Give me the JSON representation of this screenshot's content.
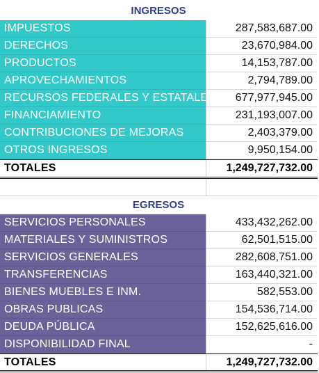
{
  "ingresos": {
    "title": "INGRESOS",
    "rows": [
      {
        "label": "IMPUESTOS",
        "value": "287,583,687.00"
      },
      {
        "label": "DERECHOS",
        "value": "23,670,984.00"
      },
      {
        "label": "PRODUCTOS",
        "value": "14,153,787.00"
      },
      {
        "label": "APROVECHAMIENTOS",
        "value": "2,794,789.00"
      },
      {
        "label": "RECURSOS FEDERALES Y ESTATALES",
        "value": "677,977,945.00"
      },
      {
        "label": "FINANCIAMIENTO",
        "value": "231,193,007.00"
      },
      {
        "label": "CONTRIBUCIONES DE MEJORAS",
        "value": "2,403,379.00"
      },
      {
        "label": "OTROS INGRESOS",
        "value": "9,950,154.00"
      }
    ],
    "total_label": "TOTALES",
    "total_value": "1,249,727,732.00"
  },
  "egresos": {
    "title": "EGRESOS",
    "rows": [
      {
        "label": "SERVICIOS PERSONALES",
        "value": "433,432,262.00"
      },
      {
        "label": "MATERIALES Y SUMINISTROS",
        "value": "62,501,515.00"
      },
      {
        "label": "SERVICIOS GENERALES",
        "value": "282,608,751.00"
      },
      {
        "label": "TRANSFERENCIAS",
        "value": "163,440,321.00"
      },
      {
        "label": "BIENES MUEBLES E INM.",
        "value": "582,553.00"
      },
      {
        "label": "OBRAS PUBLICAS",
        "value": "154,536,714.00"
      },
      {
        "label": "DEUDA PÚBLICA",
        "value": "152,625,616.00"
      },
      {
        "label": "DISPONIBILIDAD FINAL",
        "value": "-"
      }
    ],
    "total_label": "TOTALES",
    "total_value": "1,249,727,732.00"
  },
  "colors": {
    "ingresos_fill": "#33c9c9",
    "egresos_fill": "#6a6298",
    "header_text": "#2d3e8c"
  }
}
